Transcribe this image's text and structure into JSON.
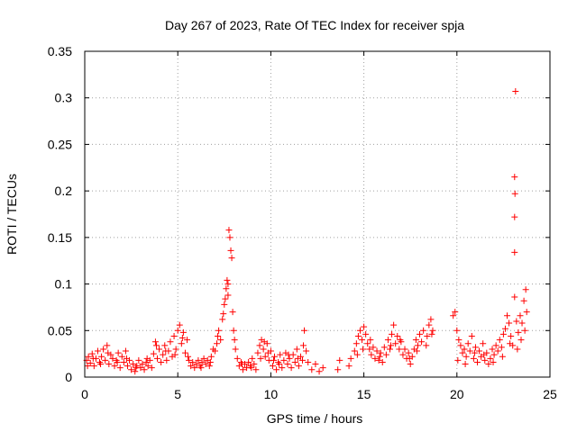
{
  "chart_data": {
    "type": "scatter",
    "title": "Day 267 of 2023, Rate Of TEC Index for receiver spja",
    "xlabel": "GPS time / hours",
    "ylabel": "ROTI / TECUs",
    "xlim": [
      0,
      25
    ],
    "ylim": [
      0,
      0.35
    ],
    "xticks": [
      "0",
      "5",
      "10",
      "15",
      "20",
      "25"
    ],
    "yticks": [
      "0",
      "0.05",
      "0.1",
      "0.15",
      "0.2",
      "0.25",
      "0.3",
      "0.35"
    ],
    "xtick_values": [
      0,
      5,
      10,
      15,
      20,
      25
    ],
    "ytick_values": [
      0,
      0.05,
      0.1,
      0.15,
      0.2,
      0.25,
      0.3,
      0.35
    ],
    "grid": true,
    "marker": "+",
    "color": "#ff0000",
    "points": [
      [
        0.1,
        0.018
      ],
      [
        0.2,
        0.022
      ],
      [
        0.3,
        0.015
      ],
      [
        0.4,
        0.025
      ],
      [
        0.5,
        0.012
      ],
      [
        0.6,
        0.02
      ],
      [
        0.7,
        0.028
      ],
      [
        0.8,
        0.016
      ],
      [
        0.9,
        0.022
      ],
      [
        1.0,
        0.03
      ],
      [
        1.1,
        0.018
      ],
      [
        1.2,
        0.034
      ],
      [
        1.3,
        0.014
      ],
      [
        1.4,
        0.024
      ],
      [
        1.5,
        0.02
      ],
      [
        1.6,
        0.012
      ],
      [
        1.7,
        0.018
      ],
      [
        1.8,
        0.026
      ],
      [
        1.9,
        0.01
      ],
      [
        2.0,
        0.022
      ],
      [
        2.1,
        0.016
      ],
      [
        2.2,
        0.028
      ],
      [
        2.3,
        0.012
      ],
      [
        2.4,
        0.018
      ],
      [
        2.5,
        0.008
      ],
      [
        2.6,
        0.014
      ],
      [
        2.7,
        0.006
      ],
      [
        2.8,
        0.012
      ],
      [
        2.9,
        0.018
      ],
      [
        3.0,
        0.01
      ],
      [
        3.1,
        0.014
      ],
      [
        3.2,
        0.008
      ],
      [
        3.3,
        0.016
      ],
      [
        3.4,
        0.012
      ],
      [
        3.5,
        0.018
      ],
      [
        3.6,
        0.01
      ],
      [
        3.7,
        0.025
      ],
      [
        3.8,
        0.038
      ],
      [
        3.9,
        0.02
      ],
      [
        4.0,
        0.03
      ],
      [
        4.1,
        0.016
      ],
      [
        4.2,
        0.024
      ],
      [
        4.3,
        0.034
      ],
      [
        4.4,
        0.018
      ],
      [
        4.5,
        0.028
      ],
      [
        4.6,
        0.038
      ],
      [
        4.7,
        0.022
      ],
      [
        4.8,
        0.044
      ],
      [
        4.9,
        0.03
      ],
      [
        5.0,
        0.05
      ],
      [
        5.1,
        0.056
      ],
      [
        5.2,
        0.036
      ],
      [
        5.3,
        0.048
      ],
      [
        5.4,
        0.026
      ],
      [
        5.5,
        0.04
      ],
      [
        5.6,
        0.018
      ],
      [
        5.7,
        0.012
      ],
      [
        5.8,
        0.016
      ],
      [
        5.9,
        0.01
      ],
      [
        6.0,
        0.014
      ],
      [
        6.1,
        0.018
      ],
      [
        6.2,
        0.012
      ],
      [
        6.3,
        0.016
      ],
      [
        6.4,
        0.02
      ],
      [
        6.5,
        0.014
      ],
      [
        6.6,
        0.018
      ],
      [
        6.7,
        0.012
      ],
      [
        6.8,
        0.022
      ],
      [
        6.9,
        0.03
      ],
      [
        7.0,
        0.028
      ],
      [
        7.1,
        0.036
      ],
      [
        7.2,
        0.05
      ],
      [
        7.3,
        0.04
      ],
      [
        7.4,
        0.062
      ],
      [
        7.5,
        0.078
      ],
      [
        7.6,
        0.095
      ],
      [
        7.65,
        0.104
      ],
      [
        7.7,
        0.088
      ],
      [
        7.75,
        0.158
      ],
      [
        7.8,
        0.15
      ],
      [
        7.85,
        0.136
      ],
      [
        7.9,
        0.128
      ],
      [
        7.95,
        0.07
      ],
      [
        8.0,
        0.05
      ],
      [
        8.1,
        0.03
      ],
      [
        8.2,
        0.02
      ],
      [
        8.3,
        0.012
      ],
      [
        8.4,
        0.016
      ],
      [
        8.5,
        0.008
      ],
      [
        8.6,
        0.014
      ],
      [
        8.7,
        0.01
      ],
      [
        8.8,
        0.016
      ],
      [
        8.9,
        0.012
      ],
      [
        9.0,
        0.02
      ],
      [
        9.1,
        0.014
      ],
      [
        9.2,
        0.008
      ],
      [
        9.3,
        0.026
      ],
      [
        9.4,
        0.034
      ],
      [
        9.5,
        0.04
      ],
      [
        9.6,
        0.03
      ],
      [
        9.7,
        0.022
      ],
      [
        9.8,
        0.036
      ],
      [
        9.9,
        0.018
      ],
      [
        10.0,
        0.028
      ],
      [
        10.1,
        0.012
      ],
      [
        10.2,
        0.022
      ],
      [
        10.3,
        0.008
      ],
      [
        10.4,
        0.016
      ],
      [
        10.5,
        0.024
      ],
      [
        10.6,
        0.01
      ],
      [
        10.7,
        0.018
      ],
      [
        10.8,
        0.026
      ],
      [
        10.9,
        0.014
      ],
      [
        11.0,
        0.02
      ],
      [
        11.1,
        0.01
      ],
      [
        11.2,
        0.024
      ],
      [
        11.3,
        0.016
      ],
      [
        11.4,
        0.03
      ],
      [
        11.5,
        0.012
      ],
      [
        11.6,
        0.022
      ],
      [
        11.7,
        0.018
      ],
      [
        11.8,
        0.05
      ],
      [
        11.9,
        0.028
      ],
      [
        12.0,
        0.016
      ],
      [
        12.2,
        0.008
      ],
      [
        12.4,
        0.014
      ],
      [
        12.6,
        0.006
      ],
      [
        12.8,
        0.01
      ],
      [
        13.6,
        0.008
      ],
      [
        13.7,
        0.018
      ],
      [
        14.2,
        0.012
      ],
      [
        14.3,
        0.02
      ],
      [
        14.5,
        0.028
      ],
      [
        14.6,
        0.036
      ],
      [
        14.7,
        0.044
      ],
      [
        14.8,
        0.05
      ],
      [
        14.9,
        0.04
      ],
      [
        15.0,
        0.054
      ],
      [
        15.1,
        0.046
      ],
      [
        15.2,
        0.036
      ],
      [
        15.3,
        0.03
      ],
      [
        15.4,
        0.024
      ],
      [
        15.5,
        0.032
      ],
      [
        15.6,
        0.02
      ],
      [
        15.7,
        0.028
      ],
      [
        15.8,
        0.018
      ],
      [
        15.9,
        0.026
      ],
      [
        16.0,
        0.016
      ],
      [
        16.1,
        0.032
      ],
      [
        16.2,
        0.024
      ],
      [
        16.3,
        0.04
      ],
      [
        16.4,
        0.03
      ],
      [
        16.5,
        0.046
      ],
      [
        16.6,
        0.056
      ],
      [
        16.7,
        0.036
      ],
      [
        16.8,
        0.044
      ],
      [
        16.9,
        0.03
      ],
      [
        17.0,
        0.038
      ],
      [
        17.1,
        0.024
      ],
      [
        17.2,
        0.03
      ],
      [
        17.3,
        0.02
      ],
      [
        17.4,
        0.026
      ],
      [
        17.5,
        0.014
      ],
      [
        17.6,
        0.022
      ],
      [
        17.7,
        0.03
      ],
      [
        17.8,
        0.04
      ],
      [
        17.9,
        0.034
      ],
      [
        18.0,
        0.046
      ],
      [
        18.1,
        0.038
      ],
      [
        18.2,
        0.05
      ],
      [
        18.4,
        0.044
      ],
      [
        18.5,
        0.056
      ],
      [
        18.6,
        0.062
      ],
      [
        18.7,
        0.05
      ],
      [
        19.8,
        0.066
      ],
      [
        19.9,
        0.07
      ],
      [
        20.0,
        0.05
      ],
      [
        20.1,
        0.04
      ],
      [
        20.2,
        0.034
      ],
      [
        20.3,
        0.026
      ],
      [
        20.4,
        0.03
      ],
      [
        20.5,
        0.022
      ],
      [
        20.6,
        0.036
      ],
      [
        20.7,
        0.028
      ],
      [
        20.8,
        0.044
      ],
      [
        20.9,
        0.02
      ],
      [
        21.0,
        0.032
      ],
      [
        21.1,
        0.016
      ],
      [
        21.2,
        0.028
      ],
      [
        21.3,
        0.022
      ],
      [
        21.4,
        0.036
      ],
      [
        21.5,
        0.018
      ],
      [
        21.6,
        0.026
      ],
      [
        21.7,
        0.014
      ],
      [
        21.8,
        0.02
      ],
      [
        21.9,
        0.03
      ],
      [
        22.0,
        0.024
      ],
      [
        22.1,
        0.034
      ],
      [
        22.2,
        0.028
      ],
      [
        22.3,
        0.04
      ],
      [
        22.4,
        0.032
      ],
      [
        22.5,
        0.046
      ],
      [
        22.6,
        0.052
      ],
      [
        22.7,
        0.066
      ],
      [
        22.8,
        0.058
      ],
      [
        22.9,
        0.044
      ],
      [
        23.0,
        0.034
      ],
      [
        23.1,
        0.086
      ],
      [
        23.15,
        0.307
      ],
      [
        23.1,
        0.215
      ],
      [
        23.12,
        0.197
      ],
      [
        23.1,
        0.172
      ],
      [
        23.1,
        0.134
      ],
      [
        23.2,
        0.06
      ],
      [
        23.3,
        0.048
      ],
      [
        23.4,
        0.066
      ],
      [
        23.5,
        0.058
      ],
      [
        23.6,
        0.082
      ],
      [
        23.7,
        0.094
      ],
      [
        23.75,
        0.07
      ],
      [
        0.15,
        0.012
      ],
      [
        0.45,
        0.02
      ],
      [
        0.85,
        0.014
      ],
      [
        1.25,
        0.026
      ],
      [
        1.75,
        0.016
      ],
      [
        2.25,
        0.02
      ],
      [
        2.75,
        0.01
      ],
      [
        3.35,
        0.02
      ],
      [
        3.85,
        0.034
      ],
      [
        4.35,
        0.028
      ],
      [
        4.85,
        0.024
      ],
      [
        5.25,
        0.042
      ],
      [
        5.55,
        0.022
      ],
      [
        6.25,
        0.01
      ],
      [
        6.75,
        0.016
      ],
      [
        7.15,
        0.044
      ],
      [
        7.45,
        0.068
      ],
      [
        7.55,
        0.084
      ],
      [
        7.7,
        0.1
      ],
      [
        8.05,
        0.04
      ],
      [
        8.45,
        0.014
      ],
      [
        8.95,
        0.01
      ],
      [
        9.45,
        0.02
      ],
      [
        9.65,
        0.038
      ],
      [
        9.85,
        0.026
      ],
      [
        10.15,
        0.018
      ],
      [
        10.45,
        0.014
      ],
      [
        10.95,
        0.024
      ],
      [
        11.45,
        0.02
      ],
      [
        11.75,
        0.034
      ],
      [
        14.65,
        0.024
      ],
      [
        14.95,
        0.03
      ],
      [
        15.35,
        0.04
      ],
      [
        15.85,
        0.022
      ],
      [
        16.45,
        0.034
      ],
      [
        16.95,
        0.04
      ],
      [
        17.45,
        0.02
      ],
      [
        17.85,
        0.028
      ],
      [
        18.35,
        0.034
      ],
      [
        18.65,
        0.046
      ],
      [
        20.05,
        0.018
      ],
      [
        20.45,
        0.014
      ],
      [
        20.95,
        0.026
      ],
      [
        21.45,
        0.024
      ],
      [
        21.95,
        0.016
      ],
      [
        22.45,
        0.022
      ],
      [
        22.85,
        0.036
      ],
      [
        23.25,
        0.03
      ],
      [
        23.45,
        0.04
      ],
      [
        23.65,
        0.05
      ]
    ]
  }
}
